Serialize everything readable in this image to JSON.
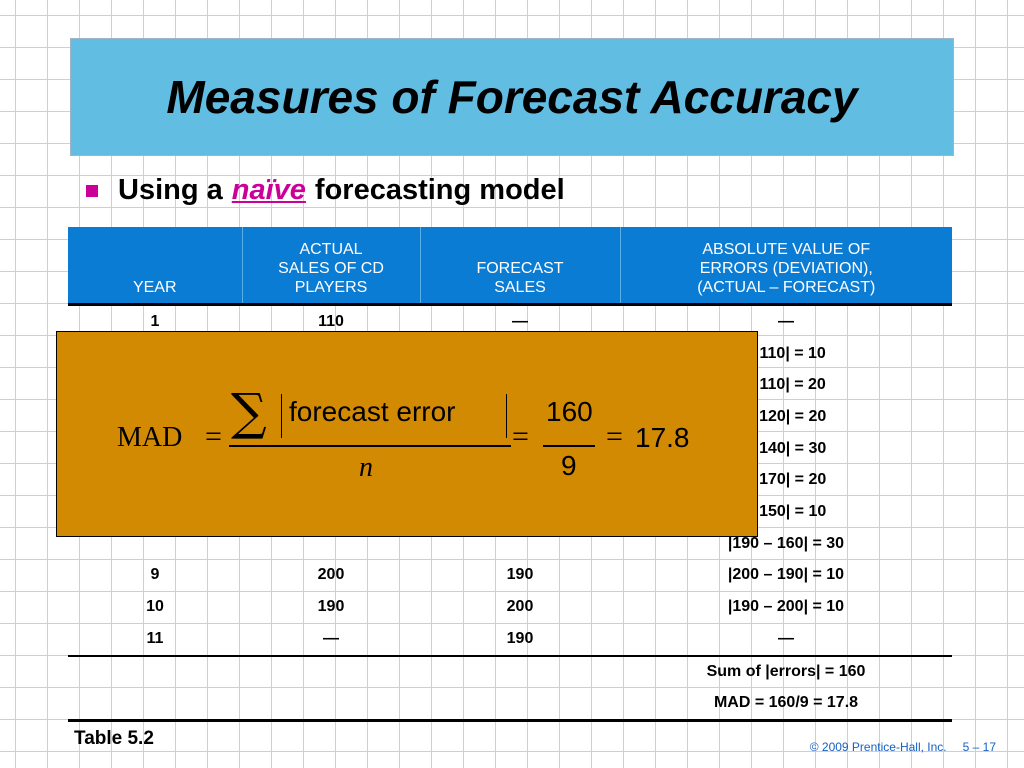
{
  "title": "Measures of Forecast Accuracy",
  "bullet": {
    "pre": "Using a",
    "emph": "naïve",
    "post": "forecasting model"
  },
  "table": {
    "headers": [
      "YEAR",
      "ACTUAL\nSALES OF CD\nPLAYERS",
      "FORECAST\nSALES",
      "ABSOLUTE VALUE OF\nERRORS (DEVIATION),\n(ACTUAL – FORECAST)"
    ],
    "rows": [
      [
        "1",
        "110",
        "—",
        "—"
      ],
      [
        "",
        "",
        "",
        "– 110| = 10"
      ],
      [
        "",
        "",
        "",
        "– 110| = 20"
      ],
      [
        "",
        "",
        "",
        "– 120| = 20"
      ],
      [
        "",
        "",
        "",
        "– 140| = 30"
      ],
      [
        "",
        "",
        "",
        "– 170| = 20"
      ],
      [
        "",
        "",
        "",
        "– 150| = 10"
      ],
      [
        "",
        "",
        "",
        "|190 – 160| = 30"
      ],
      [
        "9",
        "200",
        "190",
        "|200 – 190| = 10"
      ],
      [
        "10",
        "190",
        "200",
        "|190 – 200| = 10"
      ],
      [
        "11",
        "—",
        "190",
        "—"
      ]
    ],
    "sum_label": "Sum of |errors| = 160",
    "mad_label": "MAD = 160/9 = 17.8"
  },
  "formula": {
    "lhs": "MAD",
    "eq": "=",
    "sigma": "∑",
    "numerator_text": "forecast error",
    "denominator_text": "n",
    "num_value": "160",
    "den_value": "9",
    "result": "17.8"
  },
  "caption": "Table 5.2",
  "copyright": "© 2009 Prentice-Hall, Inc.",
  "page_number": "5 – 17",
  "colors": {
    "title_bg": "#62bde3",
    "header_bg": "#0b7cd4",
    "accent": "#cc0099",
    "formula_box": "#d18a02",
    "footer_text": "#1560c4"
  }
}
